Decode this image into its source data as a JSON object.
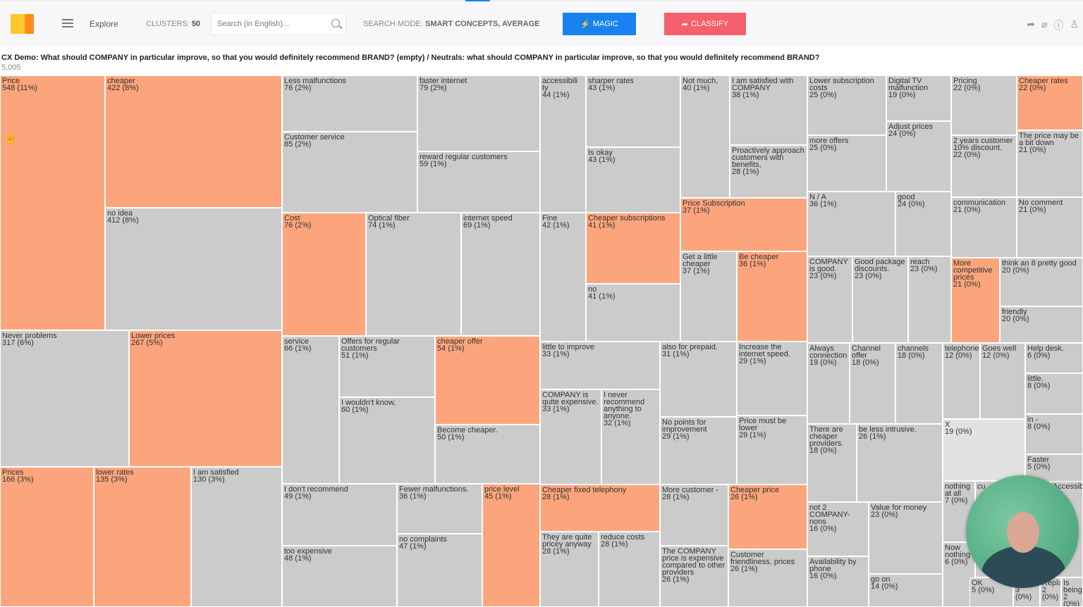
{
  "header": {
    "nav_label": "Explore",
    "clusters_label": "CLUSTERS:",
    "clusters_value": "50",
    "search_placeholder": "Search (in English)...",
    "search_mode_label": "SEARCH MODE:",
    "search_mode_value": "SMART CONCEPTS, AVERAGE",
    "magic_label": "MAGIC",
    "classify_label": "CLASSIFY",
    "magic_color": "#1a82f0",
    "classify_color": "#f5606a",
    "right_icons": [
      "share-icon",
      "tag-icon",
      "help-icon",
      "user-icon"
    ]
  },
  "view": {
    "title": "CX Demo: What should COMPANY in particular improve, so that you would definitely recommend BRAND? (empty) / Neutrals: what should COMPANY in particular improve, so that you would definitely recommend BRAND?",
    "total": "5,005"
  },
  "colors": {
    "highlight": "#fca57c",
    "default": "#cbcbcb"
  },
  "cells": [
    {
      "label": "Price",
      "value": "548 (11%)",
      "hl": true
    },
    {
      "label": "cheaper",
      "value": "422 (8%)",
      "hl": true
    },
    {
      "label": "no idea",
      "value": "412 (8%)"
    },
    {
      "label": "Never problems",
      "value": "317 (6%)"
    },
    {
      "label": "Lower prices",
      "value": "267 (5%)",
      "hl": true
    },
    {
      "label": "Prices",
      "value": "166 (3%)",
      "hl": true
    },
    {
      "label": "lower rates",
      "value": "135 (3%)",
      "hl": true
    },
    {
      "label": "I am satisfied",
      "value": "130 (3%)"
    },
    {
      "label": "Less malfunctions",
      "value": "76 (2%)"
    },
    {
      "label": "Customer service",
      "value": "85 (2%)"
    },
    {
      "label": "faster internet",
      "value": "79 (2%)"
    },
    {
      "label": "reward regular customers",
      "value": "59 (1%)"
    },
    {
      "label": "Cost",
      "value": "76 (2%)",
      "hl": true
    },
    {
      "label": "Optical fiber",
      "value": "74 (1%)"
    },
    {
      "label": "internet speed",
      "value": "69 (1%)"
    },
    {
      "label": "service",
      "value": "66 (1%)"
    },
    {
      "label": "Offers for regular customers",
      "value": "51 (1%)"
    },
    {
      "label": "I wouldn't know,",
      "value": "60 (1%)"
    },
    {
      "label": "cheaper offer",
      "value": "54 (1%)",
      "hl": true
    },
    {
      "label": "Become cheaper.",
      "value": "50 (1%)"
    },
    {
      "label": "I don't recommend",
      "value": "49 (1%)"
    },
    {
      "label": "too expensive",
      "value": "48 (1%)"
    },
    {
      "label": "Fewer malfunctions.",
      "value": "36 (1%)"
    },
    {
      "label": "no complaints",
      "value": "47 (1%)"
    },
    {
      "label": "price level",
      "value": "45 (1%)",
      "hl": true
    },
    {
      "label": "accessibili ty",
      "value": "44 (1%)"
    },
    {
      "label": "sharper rates",
      "value": "43 (1%)"
    },
    {
      "label": "Is okay",
      "value": "43 (1%)"
    },
    {
      "label": "Not much,",
      "value": "40 (1%)"
    },
    {
      "label": "I am satisfied with COMPANY",
      "value": "38 (1%)"
    },
    {
      "label": "Proactively approach customers with benefits,",
      "value": "28 (1%)"
    },
    {
      "label": "Fine",
      "value": "42 (1%)"
    },
    {
      "label": "Cheaper subscriptions",
      "value": "41 (1%)",
      "hl": true
    },
    {
      "label": "no",
      "value": "41 (1%)"
    },
    {
      "label": "Price Subscription",
      "value": "37 (1%)",
      "hl": true
    },
    {
      "label": "Get a little cheaper",
      "value": "37 (1%)"
    },
    {
      "label": "Be cheaper",
      "value": "36 (1%)",
      "hl": true
    },
    {
      "label": "little to improve",
      "value": "33 (1%)"
    },
    {
      "label": "COMPANY is quite expensive.",
      "value": "33 (1%)"
    },
    {
      "label": "I never recommend anything to anyone.",
      "value": "32 (1%)"
    },
    {
      "label": "also for prepaid.",
      "value": "31 (1%)"
    },
    {
      "label": "No points for improvement",
      "value": "29 (1%)"
    },
    {
      "label": "Increase the internet speed.",
      "value": "29 (1%)"
    },
    {
      "label": "Price must be lower",
      "value": "29 (1%)"
    },
    {
      "label": "Cheaper fixed telephony",
      "value": "28 (1%)",
      "hl": true
    },
    {
      "label": "They are quite pricey anyway",
      "value": "28 (1%)"
    },
    {
      "label": "reduce costs",
      "value": "28 (1%)"
    },
    {
      "label": "More customer -",
      "value": "28 (1%)"
    },
    {
      "label": "The COMPANY price is expensive compared to other providers",
      "value": "26 (1%)"
    },
    {
      "label": "Cheaper price",
      "value": "26 (1%)",
      "hl": true
    },
    {
      "label": "Customer friendliness, prices",
      "value": "26 (1%)"
    },
    {
      "label": "Lower subscription costs",
      "value": "25 (0%)"
    },
    {
      "label": "more offers",
      "value": "25 (0%)"
    },
    {
      "label": "Digital TV malfunction",
      "value": "19 (0%)"
    },
    {
      "label": "Adjust prices",
      "value": "24 (0%)"
    },
    {
      "label": "Pricing",
      "value": "22 (0%)"
    },
    {
      "label": "2 years customer 10% discount.",
      "value": "22 (0%)"
    },
    {
      "label": "Cheaper rates",
      "value": "22 (0%)",
      "hl": true
    },
    {
      "label": "The price may be a bit down",
      "value": "21 (0%)"
    },
    {
      "label": "N / A",
      "value": "36 (1%)"
    },
    {
      "label": "good",
      "value": "24 (0%)"
    },
    {
      "label": "communication",
      "value": "21 (0%)"
    },
    {
      "label": "No comment",
      "value": "21 (0%)"
    },
    {
      "label": "COMPANY is good.",
      "value": "23 (0%)"
    },
    {
      "label": "Good package discounts.",
      "value": "23 (0%)"
    },
    {
      "label": "reach",
      "value": "23 (0%)"
    },
    {
      "label": "More competitive prices",
      "value": "21 (0%)",
      "hl": true
    },
    {
      "label": "think an 8 pretty good",
      "value": "20 (0%)"
    },
    {
      "label": "friendly",
      "value": "20 (0%)"
    },
    {
      "label": "Always connection",
      "value": "19 (0%)"
    },
    {
      "label": "Channel offer",
      "value": "18 (0%)"
    },
    {
      "label": "channels",
      "value": "18 (0%)"
    },
    {
      "label": "telephone",
      "value": "12 (0%)"
    },
    {
      "label": "Goes well",
      "value": "12 (0%)"
    },
    {
      "label": "Help desk.",
      "value": "6 (0%)"
    },
    {
      "label": "little.",
      "value": "8 (0%)"
    },
    {
      "label": "in -",
      "value": "8 (0%)"
    },
    {
      "label": "Faster",
      "value": "5 (0%)"
    },
    {
      "label": "There are cheaper providers.",
      "value": "18 (0%)"
    },
    {
      "label": "be less intrusive.",
      "value": "26 (1%)"
    },
    {
      "label": "X",
      "value": "19 (0%)",
      "light": true
    },
    {
      "label": "not 2 COMPANY-nons",
      "value": "16 (0%)"
    },
    {
      "label": "Value for money",
      "value": "23 (0%)"
    },
    {
      "label": "Availability by phone",
      "value": "16 (0%)"
    },
    {
      "label": "go on",
      "value": "14 (0%)"
    },
    {
      "label": "nothing at all",
      "value": "7 (0%)"
    },
    {
      "label": "Now nothing",
      "value": "6 (0%)"
    },
    {
      "label": "cu",
      "value": ""
    },
    {
      "label": "Accessib",
      "value": ""
    },
    {
      "label": "OK",
      "value": "5 (0%)"
    },
    {
      "label": "not so",
      "value": "3 (0%)"
    },
    {
      "label": "Replaced",
      "value": "2 (0%)"
    },
    {
      "label": "Is being",
      "value": "2 (0%)"
    }
  ]
}
